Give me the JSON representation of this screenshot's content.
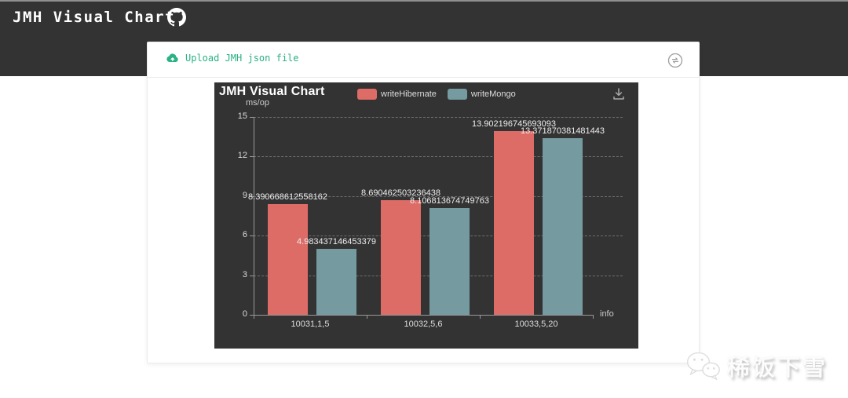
{
  "header": {
    "title": "JMH Visual Chart"
  },
  "card": {
    "upload_label": "Upload JMH json file"
  },
  "icons": {
    "github": "github-icon",
    "upload": "cloud-upload-icon",
    "toggle": "swap-circle-icon",
    "download": "download-icon",
    "wechat": "wechat-icon"
  },
  "colors": {
    "header_bg": "#333333",
    "chart_bg": "#333333",
    "accent_green": "#2ab185",
    "series_red": "#dd6b66",
    "series_teal": "#759aa0"
  },
  "chart_data": {
    "type": "bar",
    "title": "JMH Visual Chart",
    "ylabel": "ms/op",
    "x_axis_name": "info",
    "categories": [
      "10031,1,5",
      "10032,5,6",
      "10033,5,20"
    ],
    "series": [
      {
        "name": "writeHibernate",
        "color": "#dd6b66",
        "values": [
          8.390668612558162,
          8.690462503236438,
          13.902196745693093
        ],
        "labels": [
          "8.390668612558162",
          "8.690462503236438",
          "13.902196745693093"
        ]
      },
      {
        "name": "writeMongo",
        "color": "#759aa0",
        "values": [
          4.983437146453379,
          8.106813674749763,
          13.371870381481443
        ],
        "labels": [
          "4.983437146453379",
          "8.106813674749763",
          "13.371870381481443"
        ]
      }
    ],
    "ylim": [
      0,
      15
    ],
    "yticks": [
      0,
      3,
      6,
      9,
      12,
      15
    ],
    "grid": true,
    "legend_position": "top"
  },
  "watermark": {
    "text": "稀饭下雪"
  }
}
